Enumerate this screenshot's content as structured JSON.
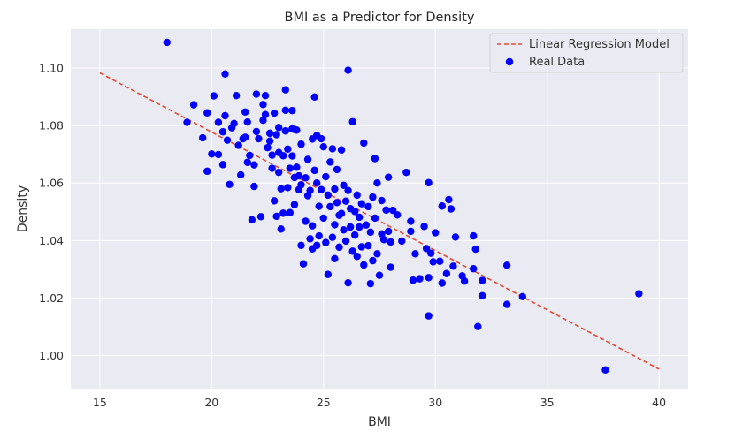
{
  "chart_data": {
    "type": "scatter",
    "title": "BMI as a Predictor for Density",
    "xlabel": "BMI",
    "ylabel": "Density",
    "xlim": [
      13.7,
      41.3
    ],
    "ylim": [
      0.9885,
      1.1135
    ],
    "xticks": [
      15,
      20,
      25,
      30,
      35,
      40
    ],
    "yticks": [
      1.0,
      1.02,
      1.04,
      1.06,
      1.08,
      1.1
    ],
    "xtick_labels": [
      "15",
      "20",
      "25",
      "30",
      "35",
      "40"
    ],
    "ytick_labels": [
      "1.00",
      "1.02",
      "1.04",
      "1.06",
      "1.08",
      "1.10"
    ],
    "grid": true,
    "background": "#EAEAF2",
    "legend": {
      "placement": "top-right",
      "entries": [
        "Linear Regression Model",
        "Real Data"
      ]
    },
    "series": [
      {
        "name": "Linear Regression Model",
        "kind": "line",
        "style": "dashed",
        "color": "#E24A33",
        "x": [
          15,
          40
        ],
        "y": [
          1.0983,
          0.9953
        ]
      },
      {
        "name": "Real Data",
        "kind": "scatter",
        "color": "#0000FF",
        "points": [
          [
            18.0,
            1.1089
          ],
          [
            18.9,
            1.0811
          ],
          [
            19.2,
            1.0872
          ],
          [
            19.6,
            1.0757
          ],
          [
            19.8,
            1.0844
          ],
          [
            19.8,
            1.0641
          ],
          [
            20.0,
            1.0701
          ],
          [
            20.1,
            1.0903
          ],
          [
            20.3,
            1.0811
          ],
          [
            20.3,
            1.0699
          ],
          [
            20.5,
            1.0778
          ],
          [
            20.6,
            1.0834
          ],
          [
            20.6,
            1.0979
          ],
          [
            20.5,
            1.0664
          ],
          [
            20.7,
            1.0749
          ],
          [
            20.8,
            1.0595
          ],
          [
            20.9,
            1.0792
          ],
          [
            21.0,
            1.0807
          ],
          [
            21.1,
            1.0904
          ],
          [
            21.2,
            1.0731
          ],
          [
            21.3,
            1.0628
          ],
          [
            21.4,
            1.0754
          ],
          [
            21.5,
            1.0847
          ],
          [
            21.5,
            1.0759
          ],
          [
            21.6,
            1.0812
          ],
          [
            21.6,
            1.0672
          ],
          [
            21.7,
            1.0696
          ],
          [
            21.8,
            1.0472
          ],
          [
            21.9,
            1.0588
          ],
          [
            21.9,
            1.0663
          ],
          [
            22.0,
            1.0779
          ],
          [
            22.0,
            1.0909
          ],
          [
            22.1,
            1.0754
          ],
          [
            22.2,
            1.0483
          ],
          [
            22.3,
            1.0818
          ],
          [
            22.3,
            1.0873
          ],
          [
            22.4,
            1.0838
          ],
          [
            22.4,
            1.0904
          ],
          [
            22.5,
            1.0723
          ],
          [
            22.6,
            1.0746
          ],
          [
            22.6,
            1.0773
          ],
          [
            22.7,
            1.0697
          ],
          [
            22.7,
            1.0651
          ],
          [
            22.8,
            1.0843
          ],
          [
            22.8,
            1.0538
          ],
          [
            22.9,
            1.0768
          ],
          [
            22.9,
            1.0484
          ],
          [
            23.0,
            1.0706
          ],
          [
            23.0,
            1.0793
          ],
          [
            23.0,
            1.0637
          ],
          [
            23.1,
            1.058
          ],
          [
            23.1,
            1.044
          ],
          [
            23.2,
            1.0695
          ],
          [
            23.2,
            1.0495
          ],
          [
            23.3,
            1.0924
          ],
          [
            23.3,
            1.0781
          ],
          [
            23.3,
            1.0853
          ],
          [
            23.4,
            1.0718
          ],
          [
            23.4,
            1.0584
          ],
          [
            23.5,
            1.0651
          ],
          [
            23.5,
            1.0497
          ],
          [
            23.6,
            1.0788
          ],
          [
            23.6,
            1.0694
          ],
          [
            23.6,
            1.0852
          ],
          [
            23.7,
            1.0786
          ],
          [
            23.7,
            1.0619
          ],
          [
            23.7,
            1.0525
          ],
          [
            23.8,
            1.0784
          ],
          [
            23.8,
            1.0655
          ],
          [
            23.9,
            1.0625
          ],
          [
            23.9,
            1.0577
          ],
          [
            24.0,
            1.0735
          ],
          [
            24.0,
            1.0383
          ],
          [
            24.0,
            1.0594
          ],
          [
            24.1,
            1.0319
          ],
          [
            24.2,
            1.0618
          ],
          [
            24.2,
            1.0467
          ],
          [
            24.3,
            1.0682
          ],
          [
            24.3,
            1.0556
          ],
          [
            24.4,
            1.0574
          ],
          [
            24.4,
            1.0406
          ],
          [
            24.5,
            1.0753
          ],
          [
            24.5,
            1.0451
          ],
          [
            24.5,
            1.0371
          ],
          [
            24.6,
            1.0899
          ],
          [
            24.6,
            1.0644
          ],
          [
            24.7,
            1.0765
          ],
          [
            24.7,
            1.06
          ],
          [
            24.7,
            1.0383
          ],
          [
            24.8,
            1.0519
          ],
          [
            24.8,
            1.0416
          ],
          [
            24.9,
            1.0754
          ],
          [
            24.9,
            1.0577
          ],
          [
            25.0,
            1.0726
          ],
          [
            25.0,
            1.0478
          ],
          [
            25.1,
            1.0622
          ],
          [
            25.1,
            1.0393
          ],
          [
            25.2,
            1.0282
          ],
          [
            25.2,
            1.0558
          ],
          [
            25.3,
            1.0518
          ],
          [
            25.3,
            1.0673
          ],
          [
            25.4,
            1.0719
          ],
          [
            25.4,
            1.0411
          ],
          [
            25.5,
            1.0579
          ],
          [
            25.5,
            1.0455
          ],
          [
            25.5,
            1.0337
          ],
          [
            25.6,
            1.0647
          ],
          [
            25.6,
            1.0532
          ],
          [
            25.7,
            1.0488
          ],
          [
            25.7,
            1.0377
          ],
          [
            25.8,
            1.0715
          ],
          [
            25.8,
            1.0494
          ],
          [
            25.9,
            1.0592
          ],
          [
            25.9,
            1.0437
          ],
          [
            26.0,
            1.0537
          ],
          [
            26.0,
            1.0398
          ],
          [
            26.1,
            1.0992
          ],
          [
            26.1,
            1.0574
          ],
          [
            26.1,
            1.0253
          ],
          [
            26.2,
            1.0511
          ],
          [
            26.2,
            1.0447
          ],
          [
            26.3,
            1.0813
          ],
          [
            26.3,
            1.0363
          ],
          [
            26.4,
            1.0501
          ],
          [
            26.4,
            1.0419
          ],
          [
            26.5,
            1.0558
          ],
          [
            26.5,
            1.0345
          ],
          [
            26.6,
            1.0481
          ],
          [
            26.6,
            1.0447
          ],
          [
            26.7,
            1.0528
          ],
          [
            26.7,
            1.0378
          ],
          [
            26.8,
            1.0739
          ],
          [
            26.8,
            1.0315
          ],
          [
            26.9,
            1.0454
          ],
          [
            27.0,
            1.0518
          ],
          [
            27.0,
            1.0382
          ],
          [
            27.1,
            1.0429
          ],
          [
            27.1,
            1.025
          ],
          [
            27.2,
            1.0551
          ],
          [
            27.2,
            1.033
          ],
          [
            27.3,
            1.0685
          ],
          [
            27.3,
            1.0478
          ],
          [
            27.4,
            1.06
          ],
          [
            27.4,
            1.0354
          ],
          [
            27.5,
            1.0279
          ],
          [
            27.6,
            1.0539
          ],
          [
            27.6,
            1.0423
          ],
          [
            27.7,
            1.0403
          ],
          [
            27.8,
            1.0506
          ],
          [
            27.9,
            1.062
          ],
          [
            27.9,
            1.0432
          ],
          [
            28.0,
            1.0307
          ],
          [
            28.0,
            1.0395
          ],
          [
            28.1,
            1.0505
          ],
          [
            28.3,
            1.0489
          ],
          [
            28.5,
            1.0398
          ],
          [
            28.7,
            1.0637
          ],
          [
            28.9,
            1.0467
          ],
          [
            28.9,
            1.0432
          ],
          [
            29.0,
            1.0262
          ],
          [
            29.1,
            1.0354
          ],
          [
            29.3,
            1.0267
          ],
          [
            29.5,
            1.0449
          ],
          [
            29.6,
            1.0372
          ],
          [
            29.7,
            1.0601
          ],
          [
            29.7,
            1.0271
          ],
          [
            29.8,
            1.0356
          ],
          [
            29.9,
            1.0326
          ],
          [
            30.0,
            1.0427
          ],
          [
            30.2,
            1.0328
          ],
          [
            30.3,
            1.052
          ],
          [
            30.3,
            1.0252
          ],
          [
            30.5,
            1.0285
          ],
          [
            30.6,
            1.0542
          ],
          [
            30.7,
            1.051
          ],
          [
            30.8,
            1.0311
          ],
          [
            30.9,
            1.0412
          ],
          [
            31.2,
            1.0277
          ],
          [
            31.3,
            1.0259
          ],
          [
            31.7,
            1.0416
          ],
          [
            31.7,
            1.0302
          ],
          [
            31.8,
            1.037
          ],
          [
            31.9,
            1.0101
          ],
          [
            32.1,
            1.0261
          ],
          [
            32.1,
            1.0208
          ],
          [
            29.7,
            1.0138
          ],
          [
            33.2,
            1.0314
          ],
          [
            33.2,
            1.0178
          ],
          [
            33.9,
            1.0205
          ],
          [
            37.6,
            0.995
          ],
          [
            39.1,
            1.0215
          ]
        ]
      }
    ]
  }
}
